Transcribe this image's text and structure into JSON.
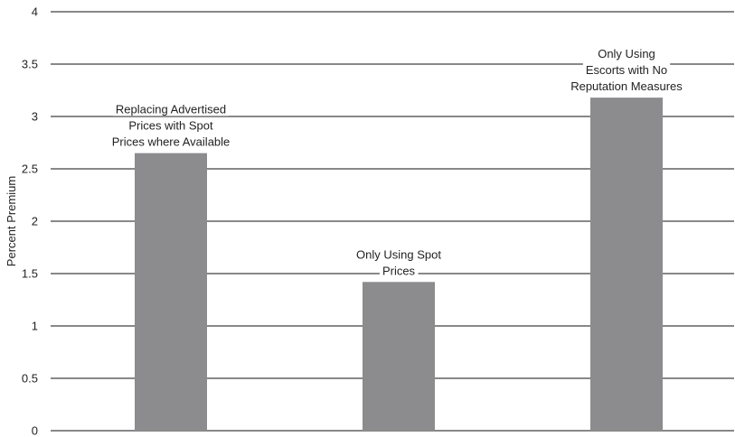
{
  "chart_data": {
    "type": "bar",
    "ylabel": "Percent Premium",
    "ylim": [
      0,
      4
    ],
    "yticks": [
      "0",
      "0.5",
      "1",
      "1.5",
      "2",
      "2.5",
      "3",
      "3.5",
      "4"
    ],
    "grid": true,
    "categories": [
      "Replacing Advertised Prices with Spot Prices where Available",
      "Only Using Spot Prices",
      "Only Using Escorts with No Reputation Measures"
    ],
    "values": [
      2.65,
      1.42,
      3.18
    ],
    "bar_labels": [
      [
        "Replacing Advertised",
        "Prices with Spot",
        "Prices where Available"
      ],
      [
        "Only Using Spot",
        "Prices"
      ],
      [
        "Only Using",
        "Escorts with No",
        "Reputation Measures"
      ]
    ],
    "bar_color": "#8c8c8e",
    "grid_color": "#111111"
  }
}
